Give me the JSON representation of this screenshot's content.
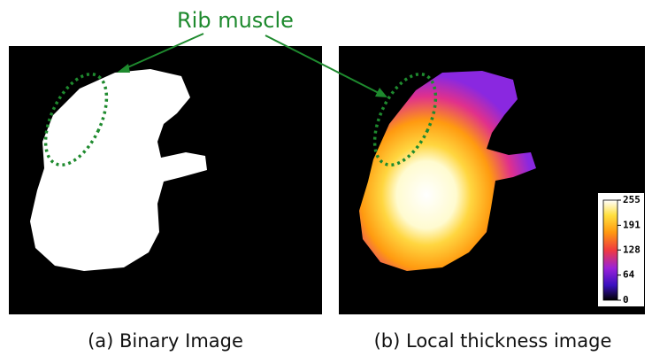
{
  "annotation": "Rib muscle",
  "panels": [
    {
      "caption": "(a) Binary Image"
    },
    {
      "caption": "(b) Local thickness image"
    }
  ],
  "colorbar": {
    "lim": [
      0,
      255
    ],
    "ticks": [
      255,
      191,
      128,
      64,
      0
    ]
  }
}
